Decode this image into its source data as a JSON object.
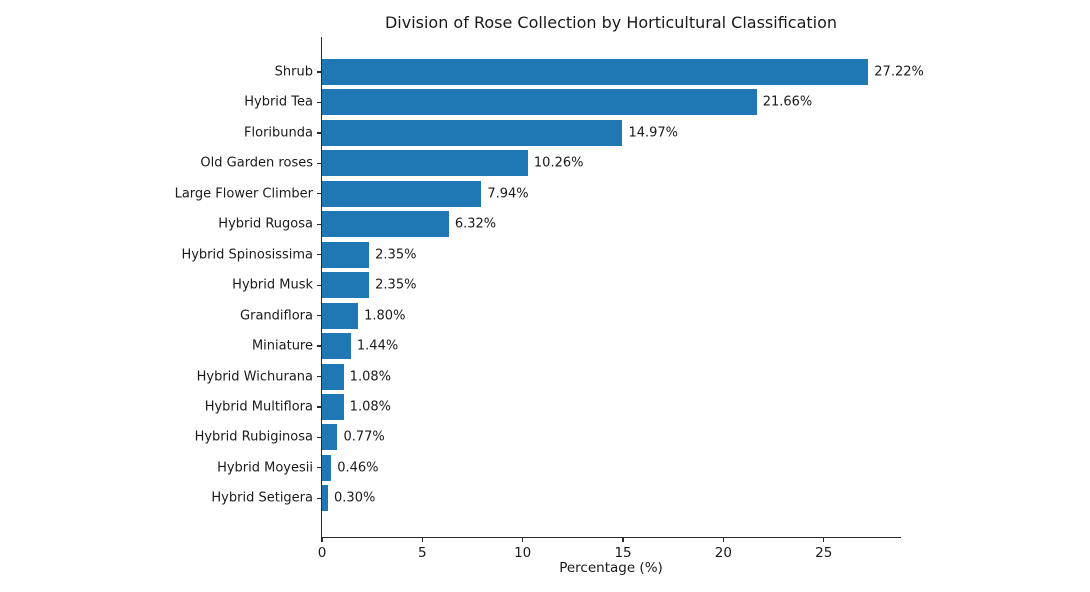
{
  "chart_data": {
    "type": "bar",
    "orientation": "horizontal",
    "title": "Division of Rose Collection by Horticultural Classification",
    "xlabel": "Percentage (%)",
    "ylabel": "",
    "categories": [
      "Shrub",
      "Hybrid Tea",
      "Floribunda",
      "Old Garden roses",
      "Large Flower Climber",
      "Hybrid Rugosa",
      "Hybrid Spinosissima",
      "Hybrid Musk",
      "Grandiflora",
      "Miniature",
      "Hybrid Wichurana",
      "Hybrid Multiflora",
      "Hybrid Rubiginosa",
      "Hybrid Moyesii",
      "Hybrid Setigera"
    ],
    "values": [
      27.22,
      21.66,
      14.97,
      10.26,
      7.94,
      6.32,
      2.35,
      2.35,
      1.8,
      1.44,
      1.08,
      1.08,
      0.77,
      0.46,
      0.3
    ],
    "value_label_suffix": "%",
    "xlim": [
      0,
      28.8
    ],
    "xticks": [
      0,
      5,
      10,
      15,
      20,
      25
    ],
    "bar_color": "#1f77b4",
    "text_color": "#1a1a1a",
    "grid": false,
    "legend": null
  }
}
